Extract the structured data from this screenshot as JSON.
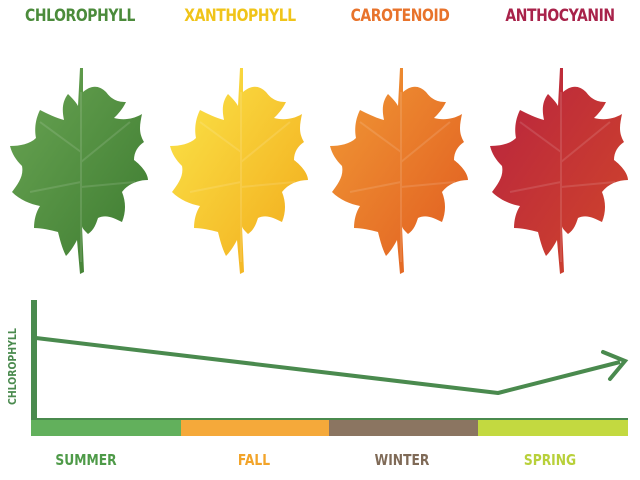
{
  "pigments": [
    {
      "name": "CHLOROPHYLL",
      "color": "#4b8b3b",
      "leaf_light": "#6aa554",
      "leaf_dark": "#3c7a2f"
    },
    {
      "name": "XANTHOPHYLL",
      "color": "#f0c419",
      "leaf_light": "#fbe64a",
      "leaf_dark": "#f2a91a"
    },
    {
      "name": "CAROTENOID",
      "color": "#e8732b",
      "leaf_light": "#f19a36",
      "leaf_dark": "#e05a1f"
    },
    {
      "name": "ANTHOCYANIN",
      "color": "#a8224a",
      "leaf_light": "#b8233f",
      "leaf_dark": "#d0462a"
    }
  ],
  "chart": {
    "y_axis_label": "CHLOROPHYLL",
    "line_color": "#4a8a4e",
    "axis_color": "#4a8a4e"
  },
  "seasons": [
    {
      "name": "SUMMER",
      "color": "#62b05c",
      "label_color": "#4e9a48"
    },
    {
      "name": "FALL",
      "color": "#f5a93a",
      "label_color": "#f2a42a"
    },
    {
      "name": "WINTER",
      "color": "#8b7561",
      "label_color": "#7f6a57"
    },
    {
      "name": "SPRING",
      "color": "#c3d940",
      "label_color": "#b8d03a"
    }
  ]
}
